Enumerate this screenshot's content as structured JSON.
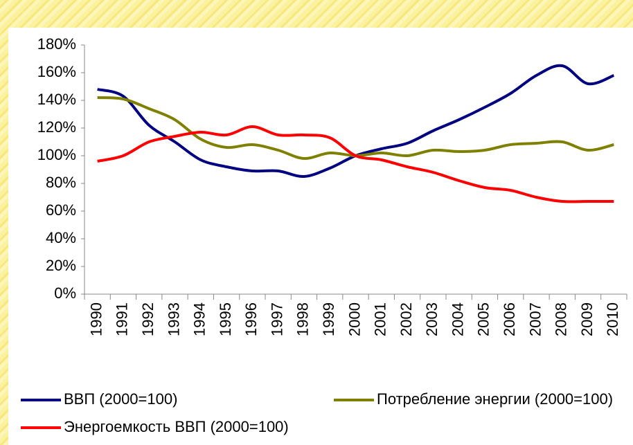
{
  "chart_data": {
    "type": "line",
    "categories": [
      "1990",
      "1991",
      "1992",
      "1993",
      "1994",
      "1995",
      "1996",
      "1997",
      "1998",
      "1999",
      "2000",
      "2001",
      "2002",
      "2003",
      "2004",
      "2005",
      "2006",
      "2007",
      "2008",
      "2009",
      "2010"
    ],
    "series": [
      {
        "name": "ВВП (2000=100)",
        "color": "#000080",
        "values": [
          148,
          143,
          122,
          110,
          97,
          92,
          89,
          89,
          85,
          91,
          100,
          105,
          109,
          118,
          126,
          135,
          145,
          158,
          165,
          152,
          158
        ]
      },
      {
        "name": "Потребление энергии (2000=100)",
        "color": "#808000",
        "values": [
          142,
          141,
          134,
          126,
          112,
          106,
          108,
          104,
          98,
          102,
          100,
          102,
          100,
          104,
          103,
          104,
          108,
          109,
          110,
          104,
          108
        ]
      },
      {
        "name": "Энергоемкость ВВП (2000=100)",
        "color": "#ff0000",
        "values": [
          96,
          100,
          110,
          114,
          117,
          115,
          121,
          115,
          115,
          113,
          100,
          97,
          92,
          88,
          82,
          77,
          75,
          70,
          67,
          67,
          67
        ]
      }
    ],
    "ylim": [
      0,
      180
    ],
    "yticks": [
      {
        "value": 0,
        "label": "0%"
      },
      {
        "value": 20,
        "label": "20%"
      },
      {
        "value": 40,
        "label": "40%"
      },
      {
        "value": 60,
        "label": "60%"
      },
      {
        "value": 80,
        "label": "80%"
      },
      {
        "value": 100,
        "label": "100%"
      },
      {
        "value": 120,
        "label": "120%"
      },
      {
        "value": 140,
        "label": "140%"
      },
      {
        "value": 160,
        "label": "160%"
      },
      {
        "value": 180,
        "label": "180%"
      }
    ],
    "grid": false
  }
}
